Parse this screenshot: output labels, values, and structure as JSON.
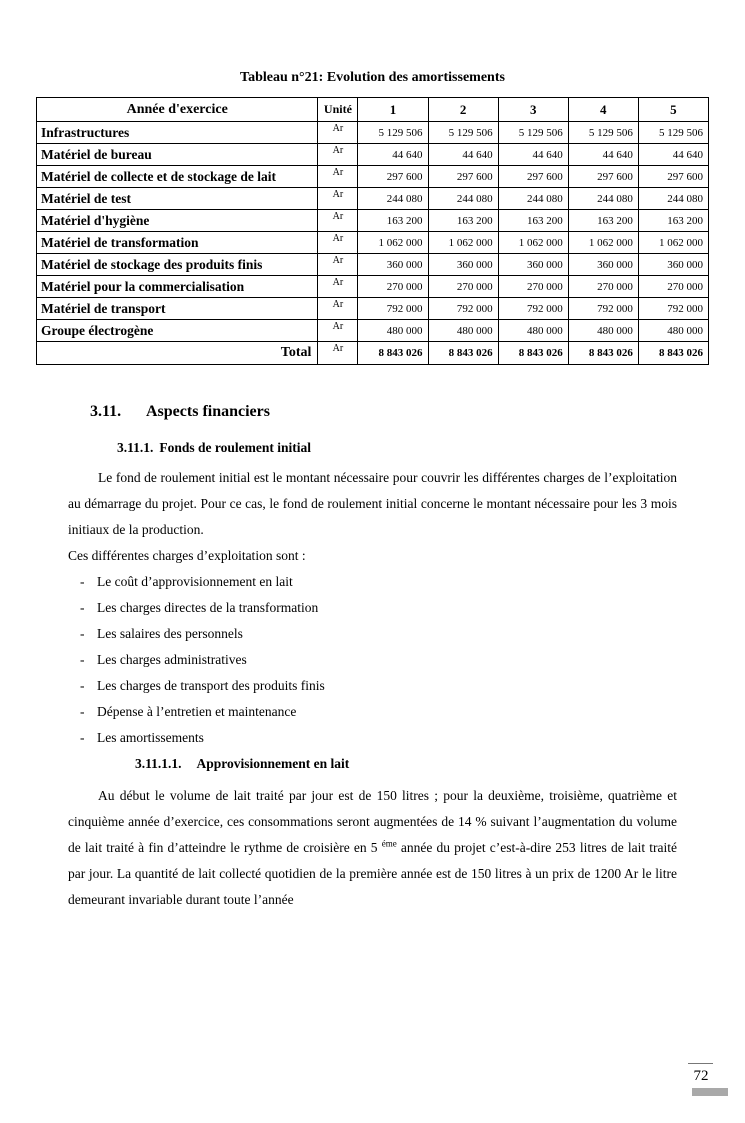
{
  "table_title": "Tableau n°21: Evolution des amortissements",
  "table": {
    "header": {
      "label": "Année d'exercice",
      "unit": "Unité",
      "years": [
        "1",
        "2",
        "3",
        "4",
        "5"
      ]
    },
    "rows": [
      {
        "label": "Infrastructures",
        "unit": "Ar",
        "values": [
          "5 129 506",
          "5 129 506",
          "5 129 506",
          "5 129 506",
          "5 129 506"
        ]
      },
      {
        "label": "Matériel de bureau",
        "unit": "Ar",
        "values": [
          "44 640",
          "44 640",
          "44 640",
          "44 640",
          "44 640"
        ]
      },
      {
        "label": "Matériel de collecte et de stockage de lait",
        "unit": "Ar",
        "values": [
          "297 600",
          "297 600",
          "297 600",
          "297 600",
          "297 600"
        ]
      },
      {
        "label": "Matériel de test",
        "unit": "Ar",
        "values": [
          "244 080",
          "244 080",
          "244 080",
          "244 080",
          "244 080"
        ]
      },
      {
        "label": "Matériel d'hygiène",
        "unit": "Ar",
        "values": [
          "163 200",
          "163 200",
          "163 200",
          "163 200",
          "163 200"
        ]
      },
      {
        "label": "Matériel de transformation",
        "unit": "Ar",
        "values": [
          "1 062 000",
          "1 062 000",
          "1 062 000",
          "1 062 000",
          "1 062 000"
        ]
      },
      {
        "label": "Matériel de stockage des produits finis",
        "unit": "Ar",
        "values": [
          "360 000",
          "360 000",
          "360 000",
          "360 000",
          "360 000"
        ]
      },
      {
        "label": "Matériel pour la commercialisation",
        "unit": "Ar",
        "values": [
          "270 000",
          "270 000",
          "270 000",
          "270 000",
          "270 000"
        ]
      },
      {
        "label": "Matériel de transport",
        "unit": "Ar",
        "values": [
          "792 000",
          "792 000",
          "792 000",
          "792 000",
          "792 000"
        ]
      },
      {
        "label": "Groupe électrogène",
        "unit": "Ar",
        "values": [
          "480 000",
          "480 000",
          "480 000",
          "480 000",
          "480 000"
        ]
      }
    ],
    "total": {
      "label": "Total",
      "unit": "Ar",
      "values": [
        "8 843 026",
        "8 843 026",
        "8 843 026",
        "8 843 026",
        "8 843 026"
      ]
    }
  },
  "sections": {
    "s311": {
      "number": "3.11.",
      "title": "Aspects financiers"
    },
    "s3111": {
      "number": "3.11.1.",
      "title": "Fonds de roulement initial"
    },
    "s31111": {
      "number": "3.11.1.1.",
      "title": "Approvisionnement en lait"
    }
  },
  "paragraphs": {
    "p1": "Le fond de roulement initial est le montant nécessaire pour couvrir les différentes charges de l’exploitation au démarrage du projet. Pour ce cas, le fond de roulement initial concerne le montant nécessaire pour les 3 mois initiaux de la production.",
    "p2": "Ces différentes charges d’exploitation sont :",
    "p3_before": "Au début le volume de lait traité par jour est de 150 litres ; pour la deuxième, troisième, quatrième et cinquième année d’exercice, ces consommations seront augmentées de 14 % suivant l’augmentation du volume de lait traité à fin d’atteindre le rythme de croisière en 5 ",
    "p3_sup": "éme",
    "p3_after": " année du projet c’est-à-dire 253 litres de lait traité par jour. La quantité de lait collecté quotidien de la première année est de 150 litres à un prix de 1200 Ar le litre demeurant invariable durant toute l’année"
  },
  "list": {
    "marker": "-",
    "items": [
      "Le coût d’approvisionnement en lait",
      "Les charges directes de la transformation",
      "Les salaires des personnels",
      "Les charges administratives",
      "Les charges de transport des produits finis",
      "Dépense à l’entretien et maintenance",
      "Les amortissements"
    ]
  },
  "footer": {
    "page_number": "72"
  }
}
